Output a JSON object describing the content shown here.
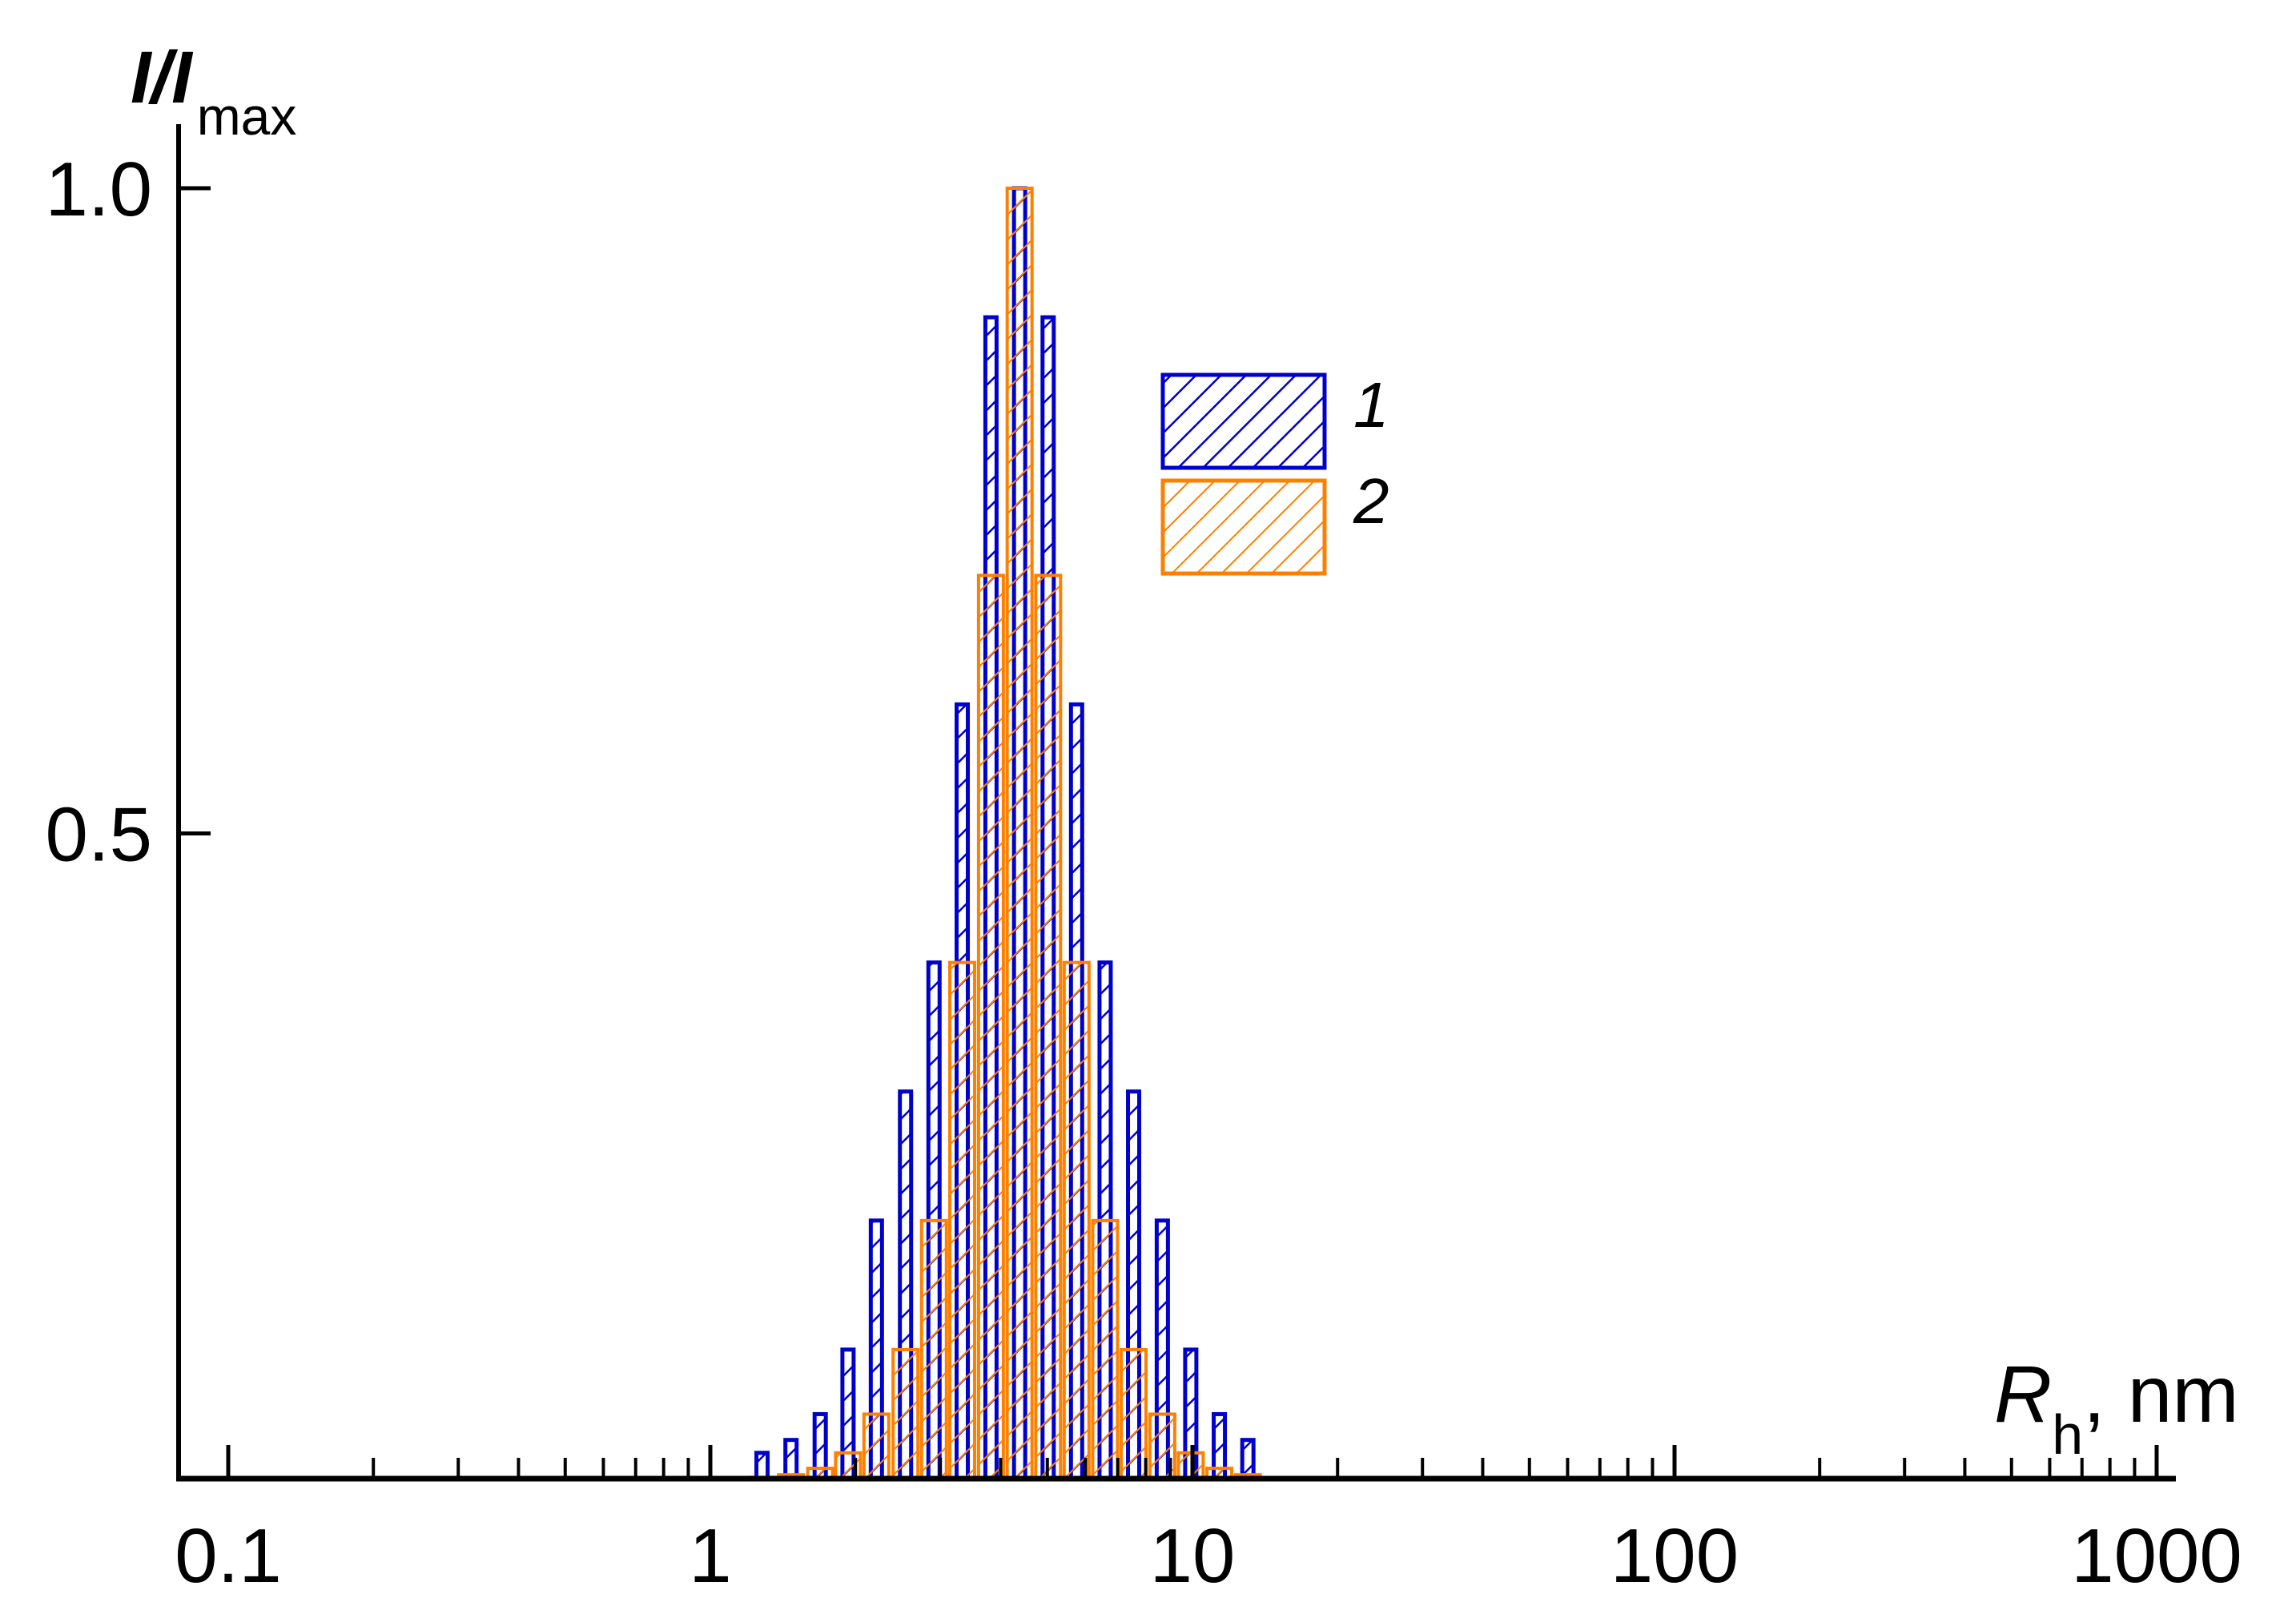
{
  "chart_data": {
    "type": "bar",
    "title": "",
    "xlabel": {
      "main": "R",
      "sub": "h",
      "suffix": ", nm"
    },
    "ylabel": {
      "main": "I/I",
      "sub": "max"
    },
    "x_scale": "log",
    "xlim": [
      0.08,
      1100
    ],
    "ylim": [
      0,
      1.0
    ],
    "x_ticks": [
      {
        "value": 0.1,
        "label": "0.1"
      },
      {
        "value": 1,
        "label": "1"
      },
      {
        "value": 10,
        "label": "10"
      },
      {
        "value": 100,
        "label": "100"
      },
      {
        "value": 1000,
        "label": "1000"
      }
    ],
    "y_ticks": [
      {
        "value": 0.5,
        "label": "0.5"
      },
      {
        "value": 1.0,
        "label": "1.0"
      }
    ],
    "grid": false,
    "legend_position": "top-center-right",
    "x": [
      1.28,
      1.47,
      1.69,
      1.93,
      2.21,
      2.54,
      2.91,
      3.33,
      3.82,
      4.38,
      5.02,
      5.75,
      6.59,
      7.55,
      8.66,
      9.92,
      11.37,
      13.03
    ],
    "series": [
      {
        "name": "1",
        "color": "#0000cc",
        "values": [
          0.02,
          0.03,
          0.05,
          0.1,
          0.2,
          0.3,
          0.4,
          0.6,
          0.9,
          1.0,
          0.9,
          0.6,
          0.4,
          0.3,
          0.2,
          0.1,
          0.05,
          0.03
        ]
      },
      {
        "name": "2",
        "color": "#ff8000",
        "values": [
          0.001,
          0.003,
          0.008,
          0.02,
          0.05,
          0.1,
          0.2,
          0.4,
          0.7,
          1.0,
          0.7,
          0.4,
          0.2,
          0.1,
          0.05,
          0.02,
          0.008,
          0.003
        ]
      }
    ]
  }
}
